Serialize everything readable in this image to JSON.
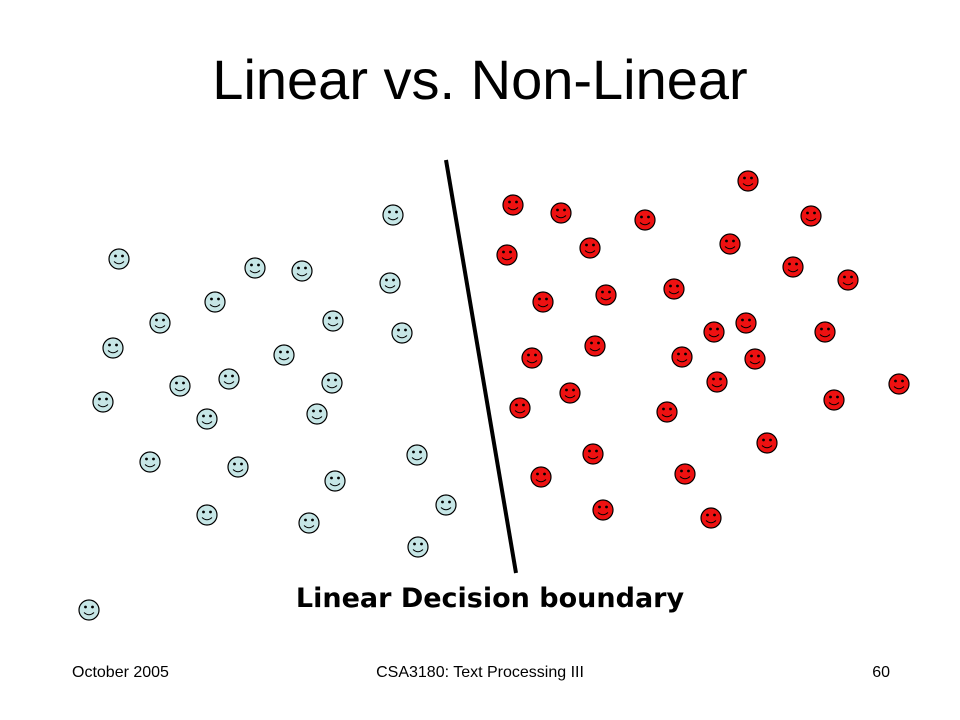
{
  "slide": {
    "title": "Linear vs. Non-Linear",
    "caption": "Linear Decision boundary",
    "footer_left": "October 2005",
    "footer_center": "CSA3180: Text Processing III",
    "footer_right": "60"
  },
  "colors": {
    "class_a_face": "#c6e6e6",
    "class_b_face": "#ee1111",
    "outline": "#000000",
    "boundary_line": "#000000"
  },
  "icons": {
    "class_a": "smiley-face-icon",
    "class_b": "smiley-face-icon"
  }
}
